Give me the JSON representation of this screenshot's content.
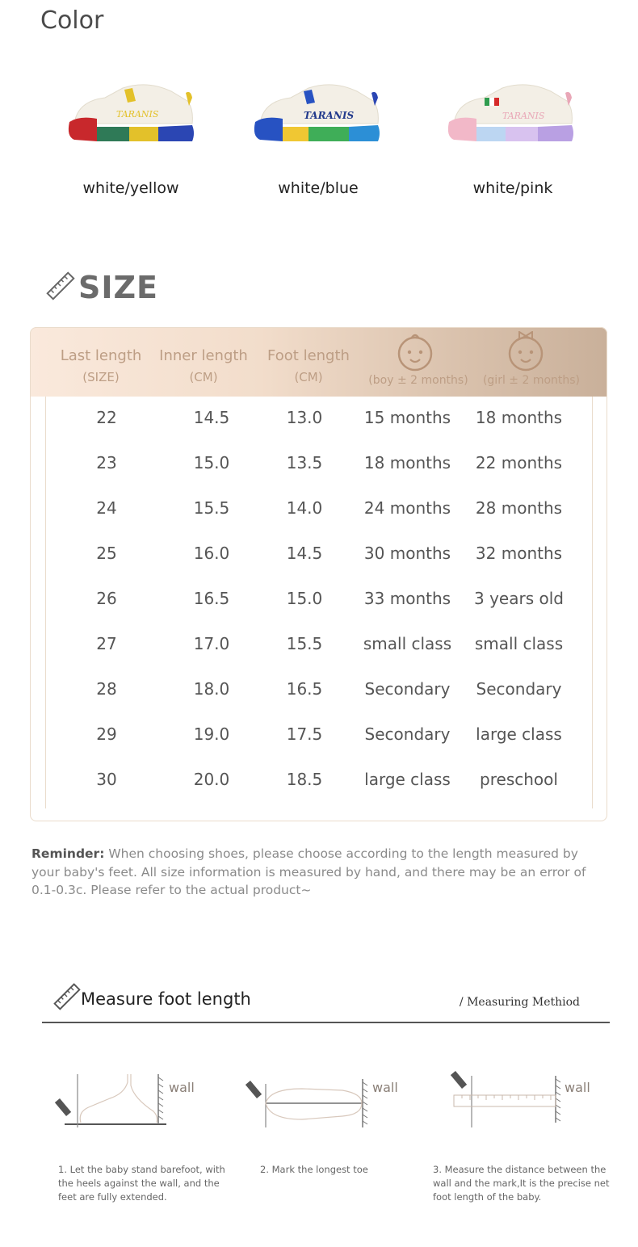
{
  "color_section": {
    "title": "Color",
    "options": [
      {
        "label": "white/yellow",
        "brand_text": "TARANIS",
        "accent": "#e3c12a",
        "toe": "#c8282c",
        "sole": [
          "#2f7a57",
          "#e3c12a",
          "#2b46b3"
        ]
      },
      {
        "label": "white/blue",
        "brand_text": "TARANIS",
        "accent": "#2b46b3",
        "toe": "#2752c2",
        "sole": [
          "#f0c733",
          "#3fae58",
          "#2c8fd6"
        ]
      },
      {
        "label": "white/pink",
        "brand_text": "TARANIS",
        "accent": "#e9a7b7",
        "toe": "#f2b8c8",
        "sole": [
          "#bcd6f2",
          "#d8c2ef",
          "#b9a0e3"
        ]
      }
    ]
  },
  "size_section": {
    "title": "SIZE",
    "icon": "ruler-icon",
    "headers": {
      "last_length": "Last length",
      "last_length_unit": "(SIZE)",
      "inner_length": "Inner length",
      "inner_length_unit": "(CM)",
      "foot_length": "Foot length",
      "foot_length_unit": "(CM)",
      "boy": "(boy ± 2 months)",
      "girl": "(girl ± 2 months)"
    },
    "rows": [
      [
        "22",
        "14.5",
        "13.0",
        "15 months",
        "18 months"
      ],
      [
        "23",
        "15.0",
        "13.5",
        "18 months",
        "22 months"
      ],
      [
        "24",
        "15.5",
        "14.0",
        "24 months",
        "28 months"
      ],
      [
        "25",
        "16.0",
        "14.5",
        "30 months",
        "32 months"
      ],
      [
        "26",
        "16.5",
        "15.0",
        "33 months",
        "3 years old"
      ],
      [
        "27",
        "17.0",
        "15.5",
        "small class",
        "small class"
      ],
      [
        "28",
        "18.0",
        "16.5",
        "Secondary",
        "Secondary"
      ],
      [
        "29",
        "19.0",
        "17.5",
        "Secondary",
        "large class"
      ],
      [
        "30",
        "20.0",
        "18.5",
        "large class",
        "preschool"
      ]
    ],
    "reminder_label": "Reminder:",
    "reminder_text": " When choosing shoes, please choose according to the length measured by your baby's feet. All size information is measured by hand, and there may be an error of 0.1-0.3c. Please refer to the actual product~"
  },
  "measure_section": {
    "title": "Measure foot length",
    "subtitle": "/ Measuring Methiod",
    "wall_label": "wall",
    "steps": [
      "1. Let the baby stand barefoot, with the heels against the wall, and the feet are fully extended.",
      "2. Mark the longest toe",
      "3. Measure the distance between the wall and the mark,It is the precise net foot length of  the baby."
    ]
  }
}
